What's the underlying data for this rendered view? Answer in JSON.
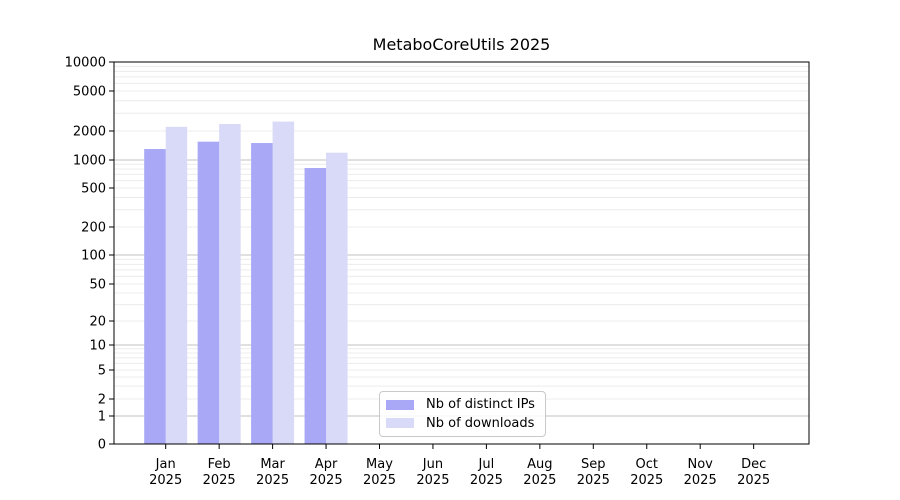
{
  "title": "MetaboCoreUtils 2025",
  "chart_data": {
    "type": "bar",
    "title": "MetaboCoreUtils 2025",
    "categories": [
      {
        "month": "Jan",
        "year": "2025"
      },
      {
        "month": "Feb",
        "year": "2025"
      },
      {
        "month": "Mar",
        "year": "2025"
      },
      {
        "month": "Apr",
        "year": "2025"
      },
      {
        "month": "May",
        "year": "2025"
      },
      {
        "month": "Jun",
        "year": "2025"
      },
      {
        "month": "Jul",
        "year": "2025"
      },
      {
        "month": "Aug",
        "year": "2025"
      },
      {
        "month": "Sep",
        "year": "2025"
      },
      {
        "month": "Oct",
        "year": "2025"
      },
      {
        "month": "Nov",
        "year": "2025"
      },
      {
        "month": "Dec",
        "year": "2025"
      }
    ],
    "series": [
      {
        "name": "Nb of distinct IPs",
        "color": "#a8a8f6",
        "values": [
          1300,
          1550,
          1500,
          820,
          null,
          null,
          null,
          null,
          null,
          null,
          null,
          null
        ]
      },
      {
        "name": "Nb of downloads",
        "color": "#d9d9f8",
        "values": [
          2200,
          2350,
          2480,
          1190,
          null,
          null,
          null,
          null,
          null,
          null,
          null,
          null
        ]
      }
    ],
    "y_ticks": [
      0,
      1,
      2,
      5,
      10,
      20,
      50,
      100,
      200,
      500,
      1000,
      2000,
      5000,
      10000
    ],
    "y_scale": "pseudo-log",
    "ylim": [
      0,
      10000
    ],
    "xlabel": "",
    "ylabel": "",
    "grid": true,
    "legend_position": "lower-center-inside"
  }
}
